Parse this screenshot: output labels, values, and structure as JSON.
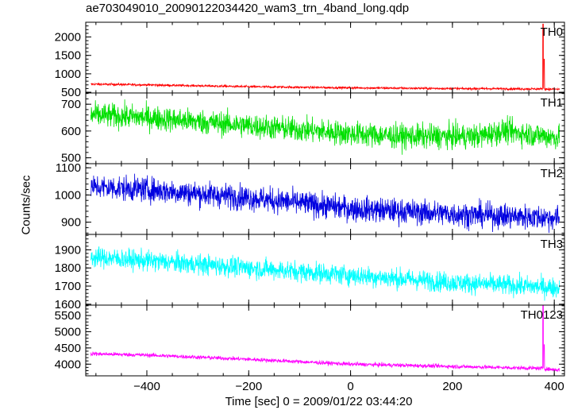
{
  "title": "ae703049010_20090122034420_wam3_trn_4band_long.qdp",
  "xlabel": "Time [sec] 0 = 2009/01/22 03:44:20",
  "ylabel": "Counts/sec",
  "chart_data": {
    "type": "line",
    "title": "ae703049010_20090122034420_wam3_trn_4band_long.qdp",
    "xlabel": "Time [sec] 0 = 2009/01/22 03:44:20",
    "ylabel": "Counts/sec",
    "xlim": [
      -520,
      420
    ],
    "x_ticks": [
      -400,
      -200,
      0,
      200,
      400
    ],
    "grid": false,
    "panels": [
      {
        "name": "TH0",
        "color": "#ff0000",
        "ylim": [
          480,
          2400
        ],
        "y_ticks": [
          500,
          1000,
          1500,
          2000
        ],
        "trend": [
          [
            -510,
            720
          ],
          [
            -400,
            700
          ],
          [
            -200,
            650
          ],
          [
            0,
            620
          ],
          [
            200,
            600
          ],
          [
            370,
            590
          ],
          [
            410,
            580
          ]
        ],
        "noise": 30,
        "spikes": [
          [
            378,
            2350
          ],
          [
            380,
            1400
          ]
        ]
      },
      {
        "name": "TH1",
        "color": "#00e000",
        "ylim": [
          478,
          742
        ],
        "y_ticks": [
          500,
          600,
          700
        ],
        "trend": [
          [
            -510,
            660
          ],
          [
            -400,
            650
          ],
          [
            -200,
            620
          ],
          [
            0,
            590
          ],
          [
            100,
            580
          ],
          [
            250,
            580
          ],
          [
            300,
            600
          ],
          [
            410,
            575
          ]
        ],
        "noise": 45,
        "spikes": []
      },
      {
        "name": "TH2",
        "color": "#0000e0",
        "ylim": [
          855,
          1115
        ],
        "y_ticks": [
          900,
          1000,
          1100
        ],
        "trend": [
          [
            -510,
            1030
          ],
          [
            -400,
            1020
          ],
          [
            -200,
            990
          ],
          [
            0,
            950
          ],
          [
            200,
            930
          ],
          [
            410,
            915
          ]
        ],
        "noise": 45,
        "spikes": []
      },
      {
        "name": "TH3",
        "color": "#00ffff",
        "ylim": [
          1595,
          1985
        ],
        "y_ticks": [
          1600,
          1700,
          1800,
          1900
        ],
        "trend": [
          [
            -510,
            1860
          ],
          [
            -400,
            1840
          ],
          [
            -200,
            1800
          ],
          [
            0,
            1760
          ],
          [
            200,
            1720
          ],
          [
            410,
            1690
          ]
        ],
        "noise": 55,
        "spikes": []
      },
      {
        "name": "TH0123",
        "color": "#ff00ff",
        "ylim": [
          3640,
          5820
        ],
        "y_ticks": [
          4000,
          4500,
          5000,
          5500
        ],
        "trend": [
          [
            -510,
            4320
          ],
          [
            -400,
            4280
          ],
          [
            -200,
            4150
          ],
          [
            0,
            4000
          ],
          [
            200,
            3930
          ],
          [
            370,
            3870
          ],
          [
            410,
            3820
          ]
        ],
        "noise": 60,
        "spikes": [
          [
            378,
            5800
          ],
          [
            380,
            4600
          ]
        ]
      }
    ]
  }
}
